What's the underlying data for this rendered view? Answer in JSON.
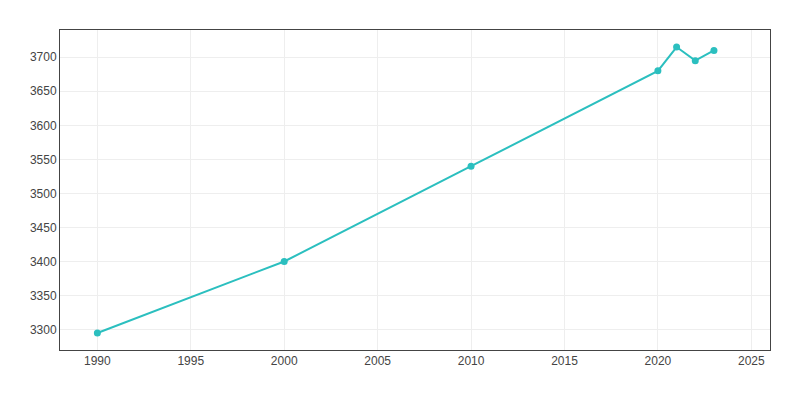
{
  "chart_data": {
    "type": "line",
    "x": [
      1990,
      2000,
      2010,
      2020,
      2021,
      2022,
      2023
    ],
    "values": [
      3295,
      3400,
      3540,
      3680,
      3715,
      3695,
      3710
    ],
    "color": "#2bbfbf",
    "marker": "circle",
    "line_style": "solid",
    "xlim": [
      1988,
      2026
    ],
    "ylim": [
      3270,
      3740
    ],
    "xticks": [
      1990,
      1995,
      2000,
      2005,
      2010,
      2015,
      2020,
      2025
    ],
    "yticks": [
      3300,
      3350,
      3400,
      3450,
      3500,
      3550,
      3600,
      3650,
      3700
    ],
    "grid": true
  }
}
